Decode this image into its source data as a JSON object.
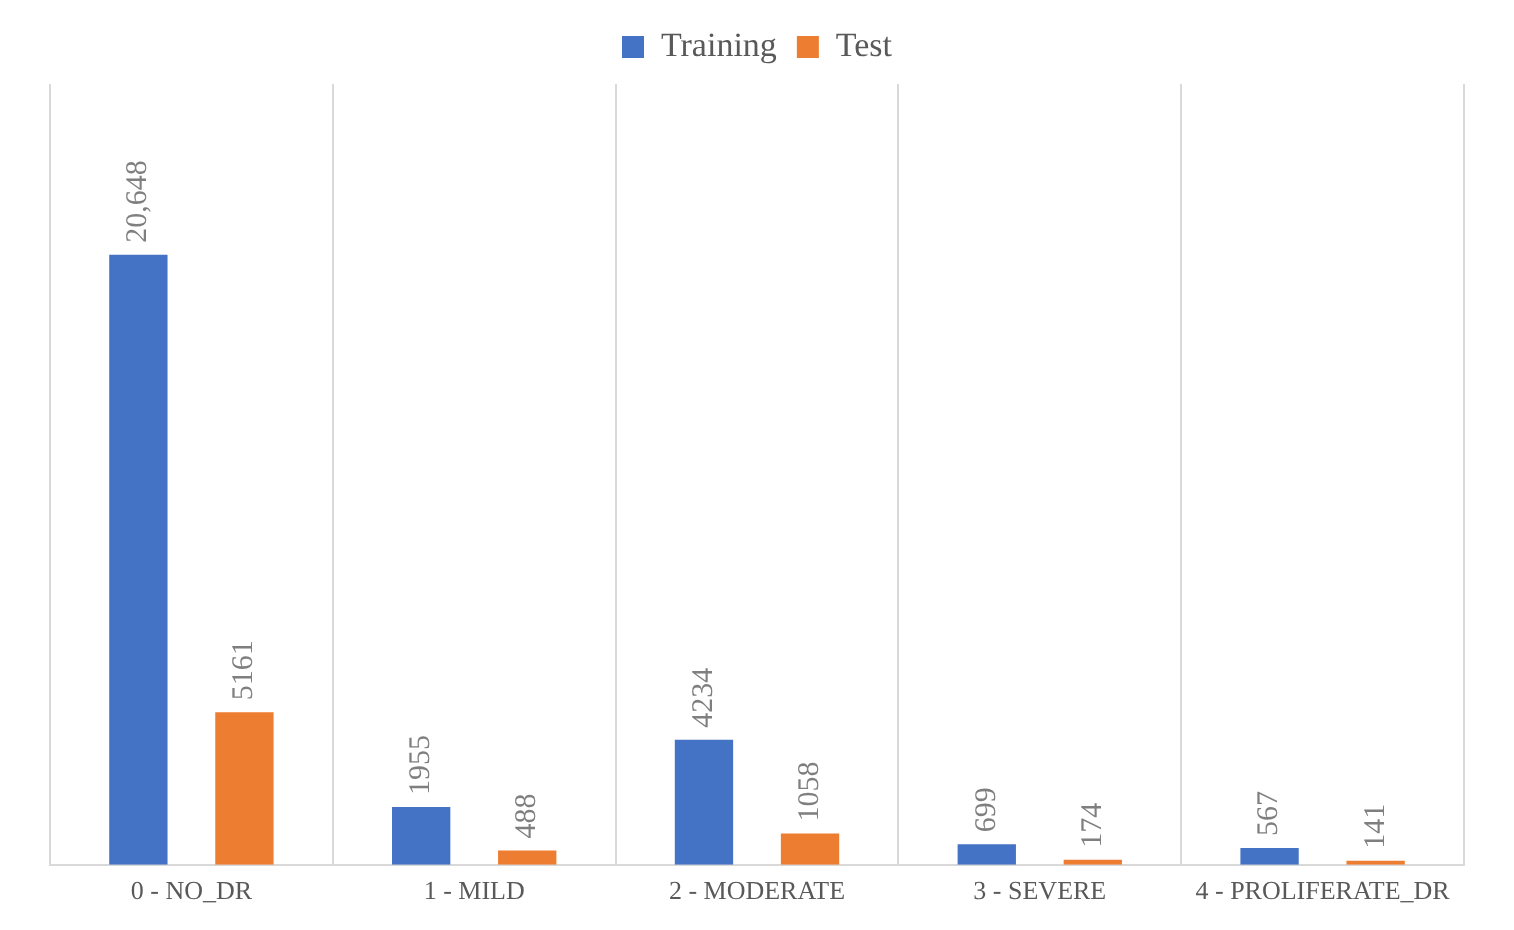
{
  "chart_data": {
    "type": "bar",
    "categories": [
      "0 - NO_DR",
      "1 - MILD",
      "2 - MODERATE",
      "3 - SEVERE",
      "4 - PROLIFERATE_DR"
    ],
    "series": [
      {
        "name": "Training",
        "color": "#4472c4",
        "values": [
          20648,
          1955,
          4234,
          699,
          567
        ],
        "value_labels": [
          "20,648",
          "1955",
          "4234",
          "699",
          "567"
        ]
      },
      {
        "name": "Test",
        "color": "#ed7d31",
        "values": [
          5161,
          488,
          1058,
          174,
          141
        ],
        "value_labels": [
          "5161",
          "488",
          "1058",
          "174",
          "141"
        ]
      }
    ],
    "grid": "x",
    "legend": "top"
  }
}
